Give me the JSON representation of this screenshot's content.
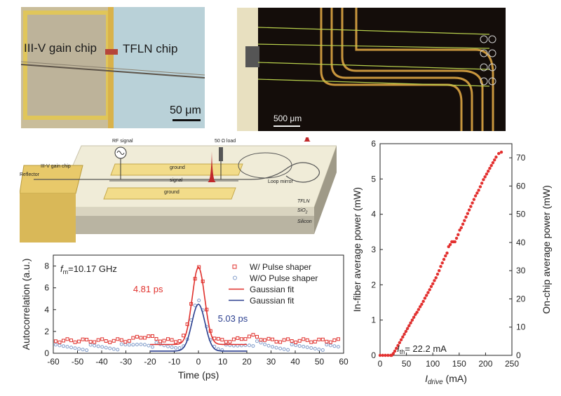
{
  "micrograph_left": {
    "gain_chip_label": "III-V gain chip",
    "tfln_chip_label": "TFLN chip",
    "scale_label": "50 μm"
  },
  "micrograph_right": {
    "scale_label": "500 μm"
  },
  "schematic": {
    "gain_chip": "III-V gain chip",
    "reflector": "Reflector",
    "rf_signal": "RF signal",
    "load": "50 Ω load",
    "ground_top": "ground",
    "signal": "signal",
    "ground_bottom": "ground",
    "loop_mirror": "Loop mirror",
    "layer_tfln": "TFLN",
    "layer_sio2": "SiO",
    "layer_sio2_sub": "2",
    "layer_silicon": "Silicon"
  },
  "chart_data": [
    {
      "type": "scatter",
      "xlabel": "Time (ps)",
      "ylabel": "Autocorrelation (a.u.)",
      "xlim": [
        -60,
        60
      ],
      "ylim": [
        0,
        9
      ],
      "xticks": [
        -60,
        -50,
        -40,
        -30,
        -20,
        -10,
        0,
        10,
        20,
        30,
        40,
        50,
        60
      ],
      "yticks": [
        0,
        2,
        4,
        6,
        8
      ],
      "annotation_fm_main": "f",
      "annotation_fm_sub": "m",
      "annotation_fm_value": "=10.17 GHz",
      "annotations": [
        {
          "text": "4.81 ps",
          "color": "#e0302c"
        },
        {
          "text": "5.03 ps",
          "color": "#2b3f8f"
        }
      ],
      "legend_position": "top-right",
      "series": [
        {
          "name": "W/ Pulse shaper",
          "color": "#e0302c",
          "marker": "square",
          "peak": 7.9,
          "fwhm_ps": 4.81,
          "baseline": 1.15
        },
        {
          "name": "W/O Pulse shaper",
          "color": "#7f9bc9",
          "marker": "circle",
          "peak": 4.5,
          "fwhm_ps": 5.03,
          "baseline": 0.45
        },
        {
          "name": "Gaussian fit",
          "color": "#e0302c",
          "marker": "line"
        },
        {
          "name": "Gaussian fit",
          "color": "#2b3f8f",
          "marker": "line"
        }
      ]
    },
    {
      "type": "scatter",
      "xlabel_main": "I",
      "xlabel_sub": "drive",
      "xlabel_unit": " (mA)",
      "ylabel": "In-fiber average power (mW)",
      "ylabel_right": "On-chip average power (mW)",
      "xlim": [
        0,
        250
      ],
      "ylim": [
        0,
        6
      ],
      "ylim_right": [
        0,
        75
      ],
      "xticks": [
        0,
        50,
        100,
        150,
        200,
        250
      ],
      "yticks": [
        0,
        1,
        2,
        3,
        4,
        5,
        6
      ],
      "yticks_right": [
        0,
        10,
        20,
        30,
        40,
        50,
        60,
        70
      ],
      "annotation_main": "I",
      "annotation_sub": "th",
      "annotation_value": "= 22.2 mA",
      "threshold_mA": 22.2,
      "points": [
        [
          0,
          0
        ],
        [
          5,
          0
        ],
        [
          10,
          0
        ],
        [
          15,
          0
        ],
        [
          20,
          0
        ],
        [
          22,
          0
        ],
        [
          25,
          0.05
        ],
        [
          28,
          0.12
        ],
        [
          31,
          0.2
        ],
        [
          34,
          0.28
        ],
        [
          37,
          0.36
        ],
        [
          40,
          0.44
        ],
        [
          43,
          0.52
        ],
        [
          46,
          0.6
        ],
        [
          49,
          0.68
        ],
        [
          52,
          0.76
        ],
        [
          55,
          0.84
        ],
        [
          58,
          0.92
        ],
        [
          61,
          1.0
        ],
        [
          64,
          1.08
        ],
        [
          67,
          1.16
        ],
        [
          70,
          1.22
        ],
        [
          73,
          1.3
        ],
        [
          76,
          1.38
        ],
        [
          79,
          1.45
        ],
        [
          82,
          1.53
        ],
        [
          85,
          1.62
        ],
        [
          88,
          1.7
        ],
        [
          91,
          1.78
        ],
        [
          94,
          1.86
        ],
        [
          97,
          1.95
        ],
        [
          100,
          2.03
        ],
        [
          103,
          2.12
        ],
        [
          106,
          2.2
        ],
        [
          109,
          2.3
        ],
        [
          112,
          2.4
        ],
        [
          115,
          2.52
        ],
        [
          118,
          2.62
        ],
        [
          121,
          2.72
        ],
        [
          124,
          2.82
        ],
        [
          127,
          2.9
        ],
        [
          130,
          3.08
        ],
        [
          133,
          3.14
        ],
        [
          136,
          3.22
        ],
        [
          139,
          3.22
        ],
        [
          142,
          3.22
        ],
        [
          145,
          3.32
        ],
        [
          148,
          3.42
        ],
        [
          151,
          3.55
        ],
        [
          154,
          3.62
        ],
        [
          157,
          3.72
        ],
        [
          160,
          3.82
        ],
        [
          163,
          3.92
        ],
        [
          166,
          4.02
        ],
        [
          169,
          4.12
        ],
        [
          172,
          4.22
        ],
        [
          175,
          4.32
        ],
        [
          178,
          4.42
        ],
        [
          181,
          4.52
        ],
        [
          184,
          4.6
        ],
        [
          187,
          4.68
        ],
        [
          190,
          4.78
        ],
        [
          193,
          4.88
        ],
        [
          196,
          4.98
        ],
        [
          199,
          5.06
        ],
        [
          202,
          5.14
        ],
        [
          205,
          5.22
        ],
        [
          208,
          5.3
        ],
        [
          211,
          5.38
        ],
        [
          214,
          5.46
        ],
        [
          217,
          5.54
        ],
        [
          220,
          5.62
        ],
        [
          225,
          5.72
        ],
        [
          230,
          5.76
        ]
      ]
    }
  ]
}
